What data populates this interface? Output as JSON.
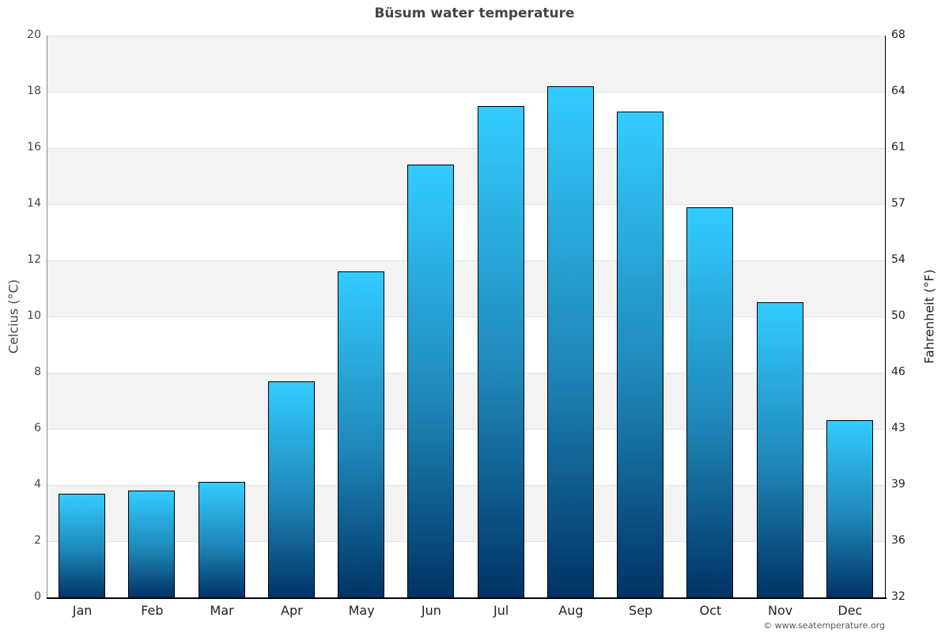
{
  "chart_data": {
    "type": "bar",
    "title": "Büsum water temperature",
    "xlabel": "",
    "ylabel": "Celcius (°C)",
    "ylabel_right": "Fahrenheit (°F)",
    "categories": [
      "Jan",
      "Feb",
      "Mar",
      "Apr",
      "May",
      "Jun",
      "Jul",
      "Aug",
      "Sep",
      "Oct",
      "Nov",
      "Dec"
    ],
    "values": [
      3.7,
      3.8,
      4.1,
      7.7,
      11.6,
      15.4,
      17.5,
      18.2,
      17.3,
      13.9,
      10.5,
      6.3
    ],
    "ylim": [
      0,
      20
    ],
    "yticks_left": [
      "0",
      "2",
      "4",
      "6",
      "8",
      "10",
      "12",
      "14",
      "16",
      "18",
      "20"
    ],
    "yticks_right": [
      "32",
      "36",
      "39",
      "43",
      "46",
      "50",
      "54",
      "57",
      "61",
      "64",
      "68"
    ],
    "grid": true,
    "legend": null,
    "bar_gradient": {
      "top": "#33ccff",
      "bottom": "#003366"
    },
    "band_color": "#f3f3f3"
  },
  "credit": "© www.seatemperature.org"
}
